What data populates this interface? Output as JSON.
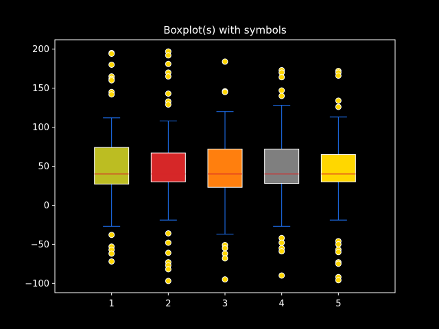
{
  "chart_data": {
    "type": "boxplot",
    "title": "Boxplot(s) with symbols",
    "xlabel": "",
    "ylabel": "",
    "categories": [
      "1",
      "2",
      "3",
      "4",
      "5"
    ],
    "ylim": [
      -112,
      212
    ],
    "yticks": [
      -100,
      -50,
      0,
      50,
      100,
      150,
      200
    ],
    "ytick_labels": [
      "−100",
      "−50",
      "0",
      "50",
      "100",
      "150",
      "200"
    ],
    "grid": false,
    "boxes": [
      {
        "category": "1",
        "whisker_low": -27,
        "q1": 27,
        "median": 40,
        "q3": 74,
        "whisker_high": 112,
        "color": "#bcbd22",
        "outliers": [
          195,
          194,
          180,
          165,
          162,
          160,
          145,
          142,
          -38,
          -53,
          -57,
          -62,
          -72
        ]
      },
      {
        "category": "2",
        "whisker_low": -19,
        "q1": 30,
        "median": 40,
        "q3": 67,
        "whisker_high": 108,
        "color": "#d62728",
        "outliers": [
          197,
          192,
          181,
          170,
          165,
          143,
          133,
          129,
          -36,
          -48,
          -61,
          -73,
          -77,
          -82,
          -97
        ]
      },
      {
        "category": "3",
        "whisker_low": -37,
        "q1": 23,
        "median": 40,
        "q3": 72,
        "whisker_high": 120,
        "color": "#ff7f0e",
        "outliers": [
          184,
          146,
          145,
          -51,
          -55,
          -62,
          -68,
          -95
        ]
      },
      {
        "category": "4",
        "whisker_low": -27,
        "q1": 28,
        "median": 40,
        "q3": 72,
        "whisker_high": 128,
        "color": "#7f7f7f",
        "outliers": [
          173,
          170,
          164,
          147,
          140,
          -42,
          -48,
          -55,
          -59,
          -90
        ]
      },
      {
        "category": "5",
        "whisker_low": -19,
        "q1": 30,
        "median": 40,
        "q3": 65,
        "whisker_high": 113,
        "color": "#ffd700",
        "outliers": [
          172,
          170,
          166,
          134,
          126,
          -46,
          -50,
          -57,
          -60,
          -73,
          -75,
          -92,
          -96
        ]
      }
    ],
    "colors": {
      "background": "#000000",
      "axes": "#ffffff",
      "whisker": "#1f77ff",
      "median": "#d62728",
      "outlier_fill": "#ffd700",
      "outlier_edge": "#ffffff",
      "box_edge": "#ffffff"
    }
  }
}
